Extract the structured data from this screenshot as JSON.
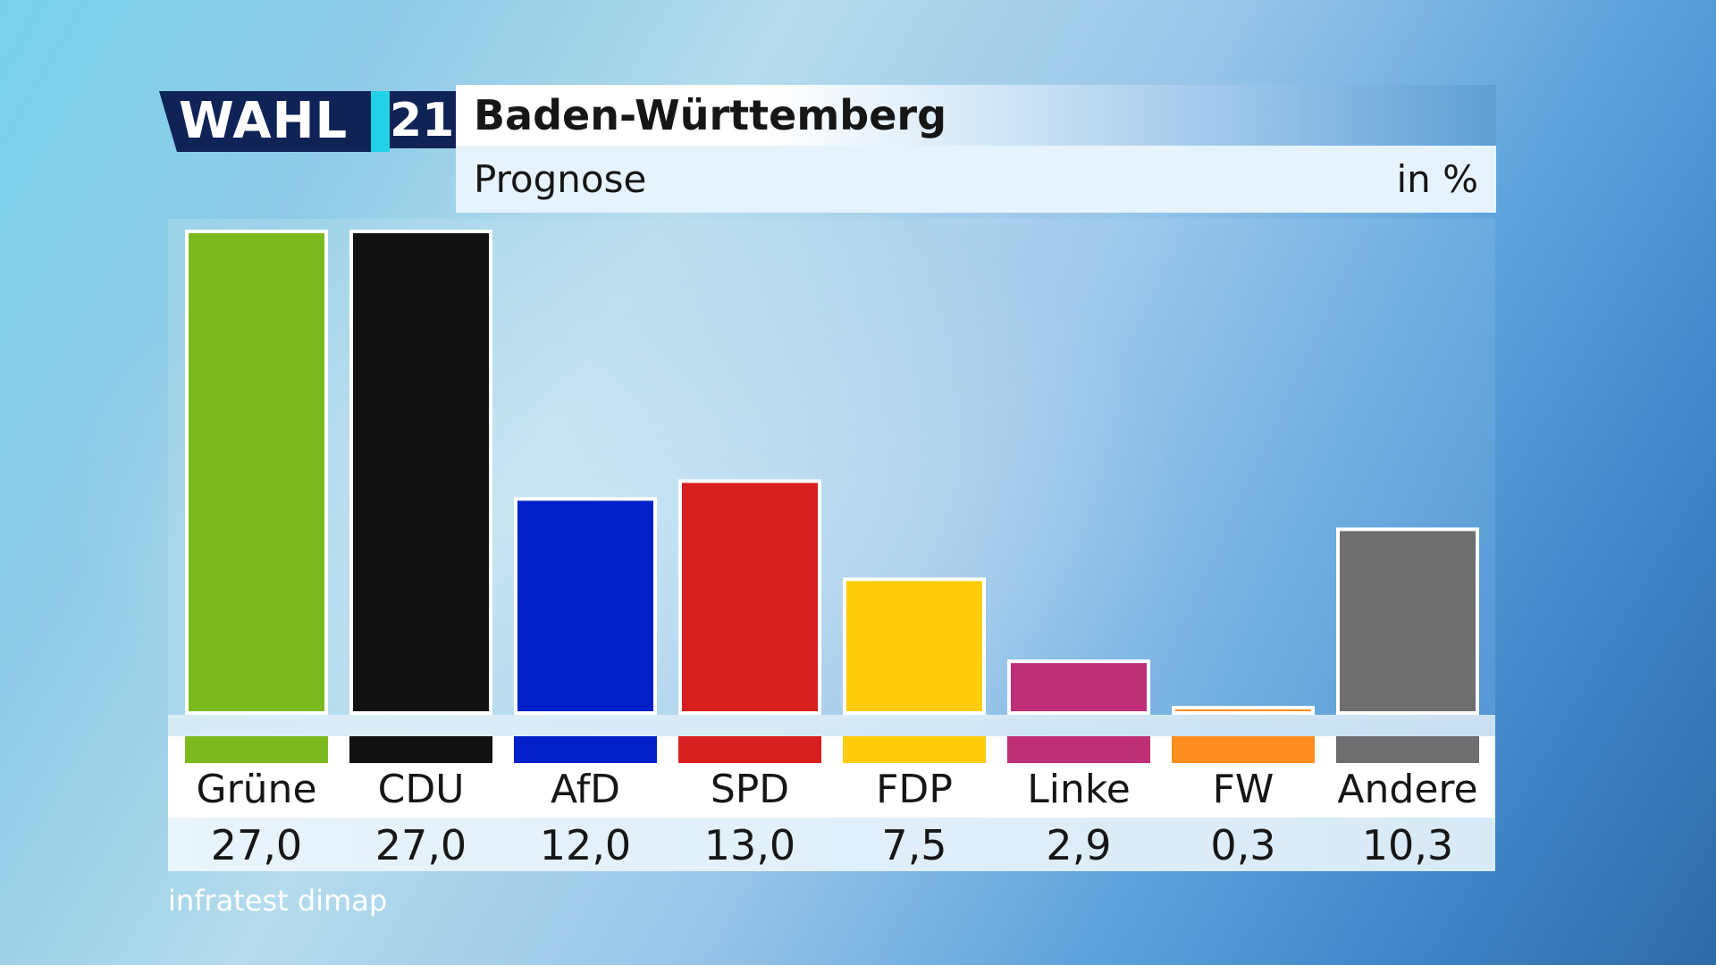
{
  "header": {
    "logo_word": "WAHL",
    "logo_number": "21",
    "title": "Baden-Württemberg",
    "subtitle": "Prognose",
    "unit": "in %"
  },
  "source": "infratest dimap",
  "chart_data": {
    "type": "bar",
    "title": "Baden-Württemberg",
    "subtitle": "Prognose",
    "unit": "in %",
    "categories": [
      "Grüne",
      "CDU",
      "AfD",
      "SPD",
      "FDP",
      "Linke",
      "FW",
      "Andere"
    ],
    "values": [
      27.0,
      27.0,
      12.0,
      13.0,
      7.5,
      2.9,
      0.3,
      10.3
    ],
    "value_labels": [
      "27,0",
      "27,0",
      "12,0",
      "13,0",
      "7,5",
      "2,9",
      "0,3",
      "10,3"
    ],
    "colors": [
      "#7aba1e",
      "#121212",
      "#0020c8",
      "#d81e1e",
      "#ffcc0a",
      "#be2f78",
      "#ff8c1e",
      "#6e6e70"
    ],
    "ylim": [
      0,
      27.0
    ],
    "grid": false,
    "legend": "none"
  }
}
